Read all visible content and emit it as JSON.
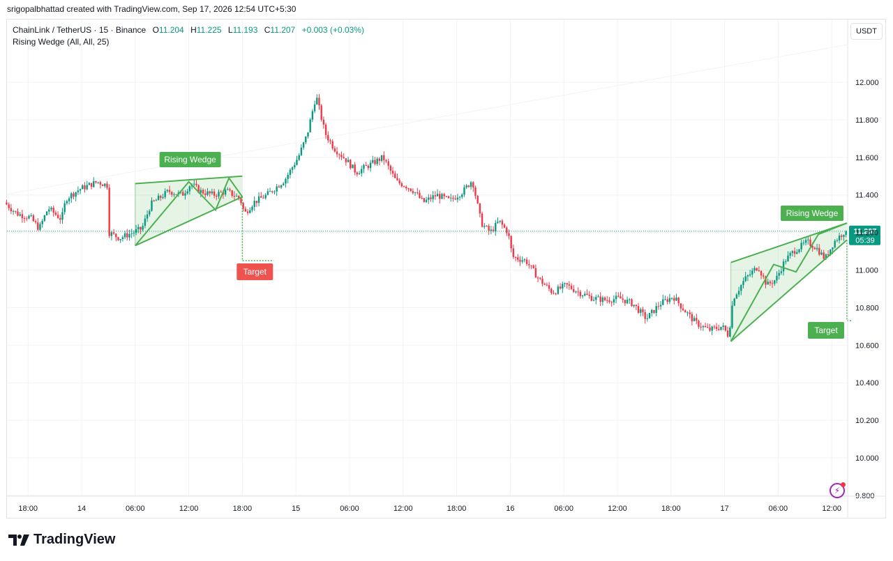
{
  "header": {
    "attribution": "srigopalbhattad created with TradingView.com, Sep 17, 2026 12:54 UTC+5:30"
  },
  "legend": {
    "symbol": "ChainLink / TetherUS · 15 · Binance",
    "o_label": "O",
    "o_value": "11.204",
    "h_label": "H",
    "h_value": "11.225",
    "l_label": "L",
    "l_value": "11.193",
    "c_label": "C",
    "c_value": "11.207",
    "change": "+0.003 (+0.03%)",
    "indicator": "Rising Wedge (All, All, 25)"
  },
  "unit_label": "USDT",
  "price_tag": {
    "value": "11.207",
    "countdown": "05:39",
    "color": "#089981"
  },
  "footer": {
    "brand": "TradingView"
  },
  "colors": {
    "up": "#089981",
    "down": "#f23645",
    "wedge": "#4caf50",
    "target_bear": "#ef5350",
    "target_bull": "#4caf50"
  },
  "icons": {
    "flash": "flash-icon",
    "logo": "tradingview-logo"
  },
  "chart_data": {
    "type": "candlestick",
    "title": "",
    "xlabel": "",
    "ylabel": "",
    "ylim": [
      9.75,
      12.5
    ],
    "grid": true,
    "y_ticks": [
      "12.000",
      "11.800",
      "11.600",
      "11.400",
      "11.200",
      "11.000",
      "10.800",
      "10.600",
      "10.400",
      "10.200",
      "10.000",
      "9.800"
    ],
    "y_tick_values": [
      12.0,
      11.8,
      11.6,
      11.4,
      11.2,
      11.0,
      10.8,
      10.6,
      10.4,
      10.2,
      10.0,
      9.8
    ],
    "x_ticks": [
      "18:00",
      "14",
      "06:00",
      "12:00",
      "18:00",
      "15",
      "06:00",
      "12:00",
      "18:00",
      "16",
      "06:00",
      "12:00",
      "18:00",
      "17",
      "06:00",
      "12:00"
    ],
    "x_tick_hours": [
      -6,
      0,
      6,
      12,
      18,
      24,
      30,
      36,
      42,
      48,
      54,
      60,
      66,
      72,
      78,
      84
    ],
    "x_range_hours": [
      -8.4,
      86.2
    ],
    "price_path": [
      [
        -8.4,
        11.36
      ],
      [
        -7.0,
        11.3
      ],
      [
        -5.5,
        11.28
      ],
      [
        -4.5,
        11.22
      ],
      [
        -3.5,
        11.33
      ],
      [
        -2.0,
        11.27
      ],
      [
        -1.5,
        11.38
      ],
      [
        0.0,
        11.43
      ],
      [
        1.0,
        11.45
      ],
      [
        2.0,
        11.47
      ],
      [
        3.2,
        11.45
      ],
      [
        3.3,
        11.2
      ],
      [
        4.5,
        11.17
      ],
      [
        6.0,
        11.2
      ],
      [
        7.0,
        11.22
      ],
      [
        8.0,
        11.35
      ],
      [
        10.0,
        11.42
      ],
      [
        11.5,
        11.4
      ],
      [
        12.5,
        11.46
      ],
      [
        13.5,
        11.42
      ],
      [
        15.0,
        11.4
      ],
      [
        16.5,
        11.42
      ],
      [
        18.0,
        11.38
      ],
      [
        18.5,
        11.3
      ],
      [
        19.5,
        11.36
      ],
      [
        21.0,
        11.4
      ],
      [
        23.0,
        11.48
      ],
      [
        24.5,
        11.6
      ],
      [
        25.5,
        11.72
      ],
      [
        26.5,
        11.93
      ],
      [
        27.5,
        11.73
      ],
      [
        28.5,
        11.65
      ],
      [
        30.0,
        11.58
      ],
      [
        31.0,
        11.52
      ],
      [
        32.5,
        11.56
      ],
      [
        34.0,
        11.6
      ],
      [
        35.5,
        11.47
      ],
      [
        36.5,
        11.45
      ],
      [
        37.5,
        11.42
      ],
      [
        38.5,
        11.36
      ],
      [
        40.0,
        11.4
      ],
      [
        41.5,
        11.37
      ],
      [
        43.0,
        11.42
      ],
      [
        44.0,
        11.48
      ],
      [
        45.0,
        11.25
      ],
      [
        46.0,
        11.2
      ],
      [
        47.0,
        11.26
      ],
      [
        48.0,
        11.2
      ],
      [
        48.5,
        11.07
      ],
      [
        50.0,
        11.05
      ],
      [
        51.5,
        10.95
      ],
      [
        53.0,
        10.88
      ],
      [
        54.5,
        10.92
      ],
      [
        56.0,
        10.88
      ],
      [
        57.5,
        10.85
      ],
      [
        59.0,
        10.84
      ],
      [
        60.5,
        10.85
      ],
      [
        62.0,
        10.82
      ],
      [
        63.5,
        10.74
      ],
      [
        65.0,
        10.82
      ],
      [
        66.5,
        10.86
      ],
      [
        67.5,
        10.8
      ],
      [
        69.0,
        10.72
      ],
      [
        70.5,
        10.68
      ],
      [
        72.0,
        10.7
      ],
      [
        72.7,
        10.65
      ],
      [
        73.2,
        10.85
      ],
      [
        74.5,
        10.95
      ],
      [
        76.0,
        11.02
      ],
      [
        77.0,
        10.92
      ],
      [
        78.0,
        10.95
      ],
      [
        79.0,
        11.05
      ],
      [
        80.0,
        11.1
      ],
      [
        81.5,
        11.15
      ],
      [
        82.5,
        11.12
      ],
      [
        83.5,
        11.06
      ],
      [
        84.5,
        11.15
      ],
      [
        85.7,
        11.207
      ]
    ],
    "last_price": 11.207,
    "patterns": [
      {
        "name": "Rising Wedge",
        "upper": [
          [
            6.0,
            11.46
          ],
          [
            18.0,
            11.5
          ]
        ],
        "lower": [
          [
            6.0,
            11.13
          ],
          [
            18.0,
            11.39
          ]
        ],
        "zigzag": [
          [
            6.0,
            11.13
          ],
          [
            12.0,
            11.47
          ],
          [
            15.0,
            11.32
          ],
          [
            16.5,
            11.49
          ],
          [
            18.0,
            11.39
          ]
        ],
        "target_label": "Target",
        "target_value": 11.05,
        "target_hours": [
          18.0,
          21.5
        ]
      },
      {
        "name": "Rising Wedge",
        "upper": [
          [
            72.7,
            11.04
          ],
          [
            85.7,
            11.25
          ]
        ],
        "lower": [
          [
            72.7,
            10.62
          ],
          [
            85.7,
            11.16
          ]
        ],
        "zigzag": [
          [
            72.7,
            10.62
          ],
          [
            77.5,
            11.03
          ],
          [
            80.0,
            10.99
          ],
          [
            82.5,
            11.19
          ],
          [
            85.7,
            11.25
          ]
        ],
        "target_label": "Target",
        "target_value": 10.73,
        "target_hours": [
          85.7,
          86.2
        ]
      }
    ]
  }
}
